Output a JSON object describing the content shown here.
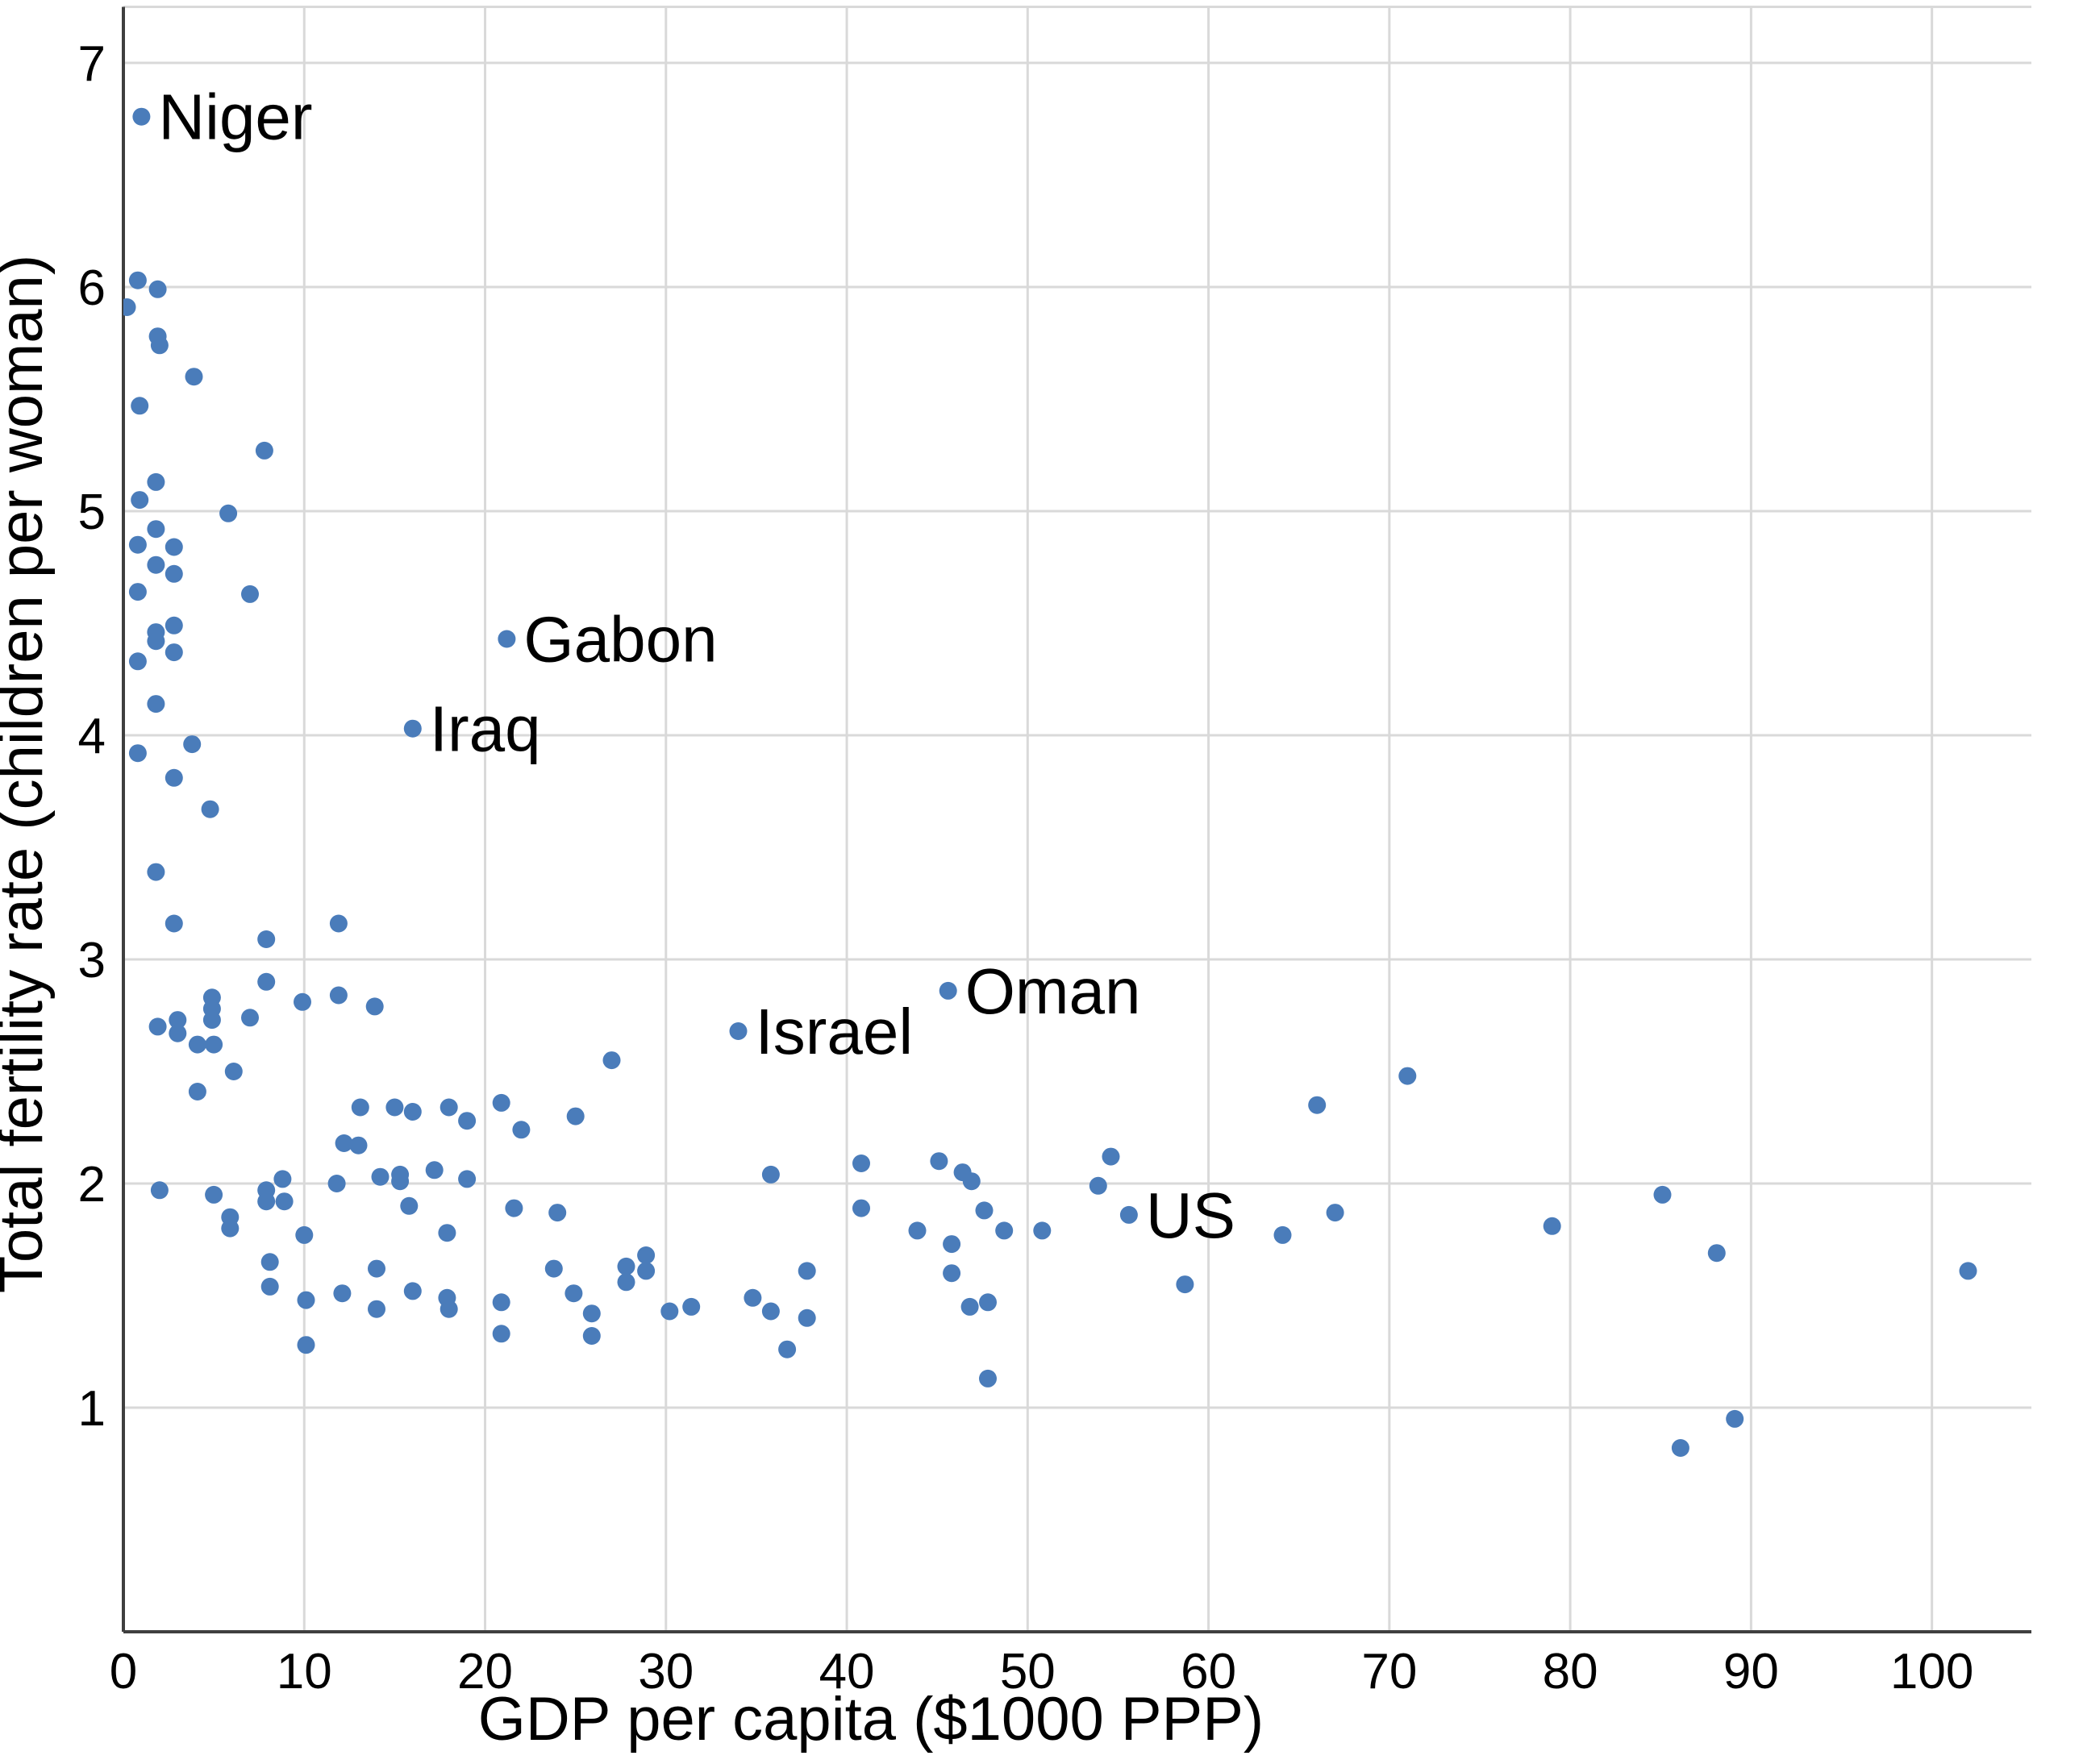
{
  "chart_data": {
    "type": "scatter",
    "title": "",
    "xlabel": "GDP per capita ($1000 PPP)",
    "ylabel": "Total fertility rate (children per woman)",
    "xlim": [
      0,
      105.5
    ],
    "ylim": [
      0,
      7.25
    ],
    "xticks": [
      0,
      10,
      20,
      30,
      40,
      50,
      60,
      70,
      80,
      90,
      100
    ],
    "yticks": [
      1,
      2,
      3,
      4,
      5,
      6,
      7
    ],
    "grid": true,
    "legend_position": "none",
    "point_color": "#4a7cba",
    "grid_color": "#d9d9d9",
    "axis_color": "#3f3f3f",
    "points": [
      [
        1.0,
        6.76
      ],
      [
        0.8,
        6.03
      ],
      [
        1.9,
        5.99
      ],
      [
        0.2,
        5.91
      ],
      [
        1.9,
        5.78
      ],
      [
        2.0,
        5.74
      ],
      [
        3.9,
        5.6
      ],
      [
        0.9,
        5.47
      ],
      [
        7.8,
        5.27
      ],
      [
        1.8,
        5.13
      ],
      [
        0.9,
        5.05
      ],
      [
        5.8,
        4.99
      ],
      [
        1.8,
        4.92
      ],
      [
        0.8,
        4.85
      ],
      [
        2.8,
        4.84
      ],
      [
        1.8,
        4.76
      ],
      [
        2.8,
        4.72
      ],
      [
        0.8,
        4.64
      ],
      [
        7.0,
        4.63
      ],
      [
        2.8,
        4.49
      ],
      [
        1.8,
        4.46
      ],
      [
        1.8,
        4.42
      ],
      [
        2.8,
        4.37
      ],
      [
        0.8,
        4.33
      ],
      [
        1.8,
        4.14
      ],
      [
        3.8,
        3.96
      ],
      [
        0.8,
        3.92
      ],
      [
        21.2,
        4.43
      ],
      [
        16.0,
        4.03
      ],
      [
        2.8,
        3.81
      ],
      [
        4.8,
        3.67
      ],
      [
        1.8,
        3.39
      ],
      [
        2.8,
        3.16
      ],
      [
        11.9,
        3.16
      ],
      [
        7.9,
        3.09
      ],
      [
        7.9,
        2.9
      ],
      [
        4.9,
        2.83
      ],
      [
        4.9,
        2.78
      ],
      [
        4.9,
        2.73
      ],
      [
        9.9,
        2.81
      ],
      [
        11.9,
        2.84
      ],
      [
        13.9,
        2.79
      ],
      [
        7.0,
        2.74
      ],
      [
        1.9,
        2.7
      ],
      [
        3.0,
        2.73
      ],
      [
        3.0,
        2.67
      ],
      [
        4.1,
        2.62
      ],
      [
        5.0,
        2.62
      ],
      [
        6.1,
        2.5
      ],
      [
        4.1,
        2.41
      ],
      [
        34.0,
        2.68
      ],
      [
        45.6,
        2.86
      ],
      [
        27.0,
        2.55
      ],
      [
        25.0,
        2.3
      ],
      [
        13.1,
        2.34
      ],
      [
        15.0,
        2.34
      ],
      [
        16.0,
        2.32
      ],
      [
        18.0,
        2.34
      ],
      [
        19.0,
        2.28
      ],
      [
        20.9,
        2.36
      ],
      [
        22.0,
        2.24
      ],
      [
        12.2,
        2.18
      ],
      [
        13.0,
        2.17
      ],
      [
        2.0,
        1.97
      ],
      [
        5.0,
        1.95
      ],
      [
        7.9,
        1.97
      ],
      [
        7.9,
        1.92
      ],
      [
        8.9,
        1.92
      ],
      [
        8.8,
        2.02
      ],
      [
        11.8,
        2.0
      ],
      [
        14.2,
        2.03
      ],
      [
        15.3,
        2.04
      ],
      [
        15.3,
        2.01
      ],
      [
        17.2,
        2.06
      ],
      [
        19.0,
        2.02
      ],
      [
        5.9,
        1.85
      ],
      [
        5.9,
        1.8
      ],
      [
        10.0,
        1.77
      ],
      [
        15.8,
        1.9
      ],
      [
        17.9,
        1.78
      ],
      [
        21.6,
        1.89
      ],
      [
        24.0,
        1.87
      ],
      [
        8.1,
        1.65
      ],
      [
        8.1,
        1.54
      ],
      [
        10.1,
        1.48
      ],
      [
        10.1,
        1.28
      ],
      [
        12.1,
        1.51
      ],
      [
        14.0,
        1.62
      ],
      [
        14.0,
        1.44
      ],
      [
        16.0,
        1.52
      ],
      [
        17.9,
        1.49
      ],
      [
        18.0,
        1.44
      ],
      [
        20.9,
        1.47
      ],
      [
        20.9,
        1.33
      ],
      [
        23.8,
        1.62
      ],
      [
        24.9,
        1.51
      ],
      [
        25.9,
        1.42
      ],
      [
        25.9,
        1.32
      ],
      [
        27.8,
        1.63
      ],
      [
        27.8,
        1.56
      ],
      [
        28.9,
        1.68
      ],
      [
        28.9,
        1.61
      ],
      [
        30.2,
        1.43
      ],
      [
        31.4,
        1.45
      ],
      [
        35.8,
        2.04
      ],
      [
        40.8,
        2.09
      ],
      [
        45.1,
        2.1
      ],
      [
        46.4,
        2.05
      ],
      [
        46.9,
        2.01
      ],
      [
        53.9,
        1.99
      ],
      [
        54.6,
        2.12
      ],
      [
        40.8,
        1.89
      ],
      [
        47.6,
        1.88
      ],
      [
        55.6,
        1.86
      ],
      [
        43.9,
        1.79
      ],
      [
        45.8,
        1.73
      ],
      [
        48.7,
        1.79
      ],
      [
        50.8,
        1.79
      ],
      [
        37.8,
        1.61
      ],
      [
        45.8,
        1.6
      ],
      [
        34.8,
        1.49
      ],
      [
        35.8,
        1.43
      ],
      [
        37.8,
        1.4
      ],
      [
        46.8,
        1.45
      ],
      [
        47.8,
        1.47
      ],
      [
        58.7,
        1.55
      ],
      [
        36.7,
        1.26
      ],
      [
        47.8,
        1.13
      ],
      [
        71.0,
        2.48
      ],
      [
        66.0,
        2.35
      ],
      [
        67.0,
        1.87
      ],
      [
        64.1,
        1.77
      ],
      [
        79.0,
        1.81
      ],
      [
        85.1,
        1.95
      ],
      [
        88.1,
        1.69
      ],
      [
        89.1,
        0.95
      ],
      [
        86.1,
        0.82
      ],
      [
        102.0,
        1.61
      ]
    ],
    "annotations": [
      {
        "label": "Niger",
        "x": 1.0,
        "y": 6.76
      },
      {
        "label": "Gabon",
        "x": 21.2,
        "y": 4.43
      },
      {
        "label": "Iraq",
        "x": 16.0,
        "y": 4.03
      },
      {
        "label": "Israel",
        "x": 34.0,
        "y": 2.68
      },
      {
        "label": "Oman",
        "x": 45.6,
        "y": 2.86
      },
      {
        "label": "US",
        "x": 55.6,
        "y": 1.86
      }
    ]
  }
}
